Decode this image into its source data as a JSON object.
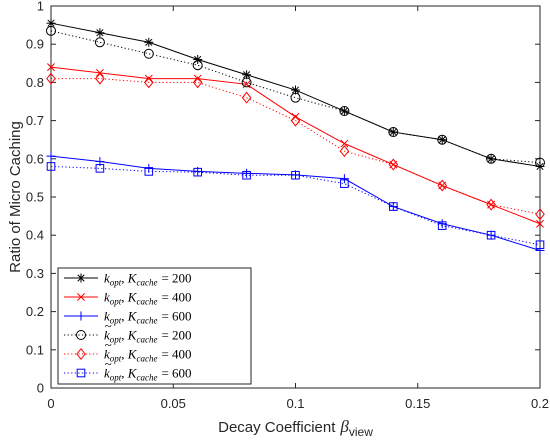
{
  "chart_data": {
    "type": "line",
    "xlabel": "Decay Coefficient",
    "xlabel_symbol": "β",
    "xlabel_subscript": "view",
    "ylabel": "Ratio of Micro Caching",
    "xlim": [
      0,
      0.2
    ],
    "ylim": [
      0,
      1
    ],
    "xticks": [
      0,
      0.05,
      0.1,
      0.15,
      0.2
    ],
    "xtick_labels": [
      "0",
      "0.05",
      "0.1",
      "0.15",
      "0.2"
    ],
    "yticks": [
      0,
      0.1,
      0.2,
      0.3,
      0.4,
      0.5,
      0.6,
      0.7,
      0.8,
      0.9,
      1
    ],
    "ytick_labels": [
      "0",
      "0.1",
      "0.2",
      "0.3",
      "0.4",
      "0.5",
      "0.6",
      "0.7",
      "0.8",
      "0.9",
      "1"
    ],
    "grid": false,
    "legend_position": "bottom-left",
    "x": [
      0,
      0.02,
      0.04,
      0.06,
      0.08,
      0.1,
      0.12,
      0.14,
      0.16,
      0.18,
      0.2
    ],
    "series": [
      {
        "name": "k_opt, K_cache = 200",
        "name_k": "k",
        "name_k_sub": "opt",
        "name_K": "K",
        "name_K_sub": "cache",
        "name_eq": "= 200",
        "tilde": false,
        "color": "#000000",
        "dash": "solid",
        "marker": "asterisk",
        "values": [
          0.955,
          0.93,
          0.905,
          0.86,
          0.82,
          0.78,
          0.725,
          0.67,
          0.65,
          0.6,
          0.58
        ]
      },
      {
        "name": "k_opt, K_cache = 400",
        "name_k": "k",
        "name_k_sub": "opt",
        "name_K": "K",
        "name_K_sub": "cache",
        "name_eq": "= 400",
        "tilde": false,
        "color": "#ff0000",
        "dash": "solid",
        "marker": "x",
        "values": [
          0.84,
          0.825,
          0.81,
          0.81,
          0.795,
          0.71,
          0.64,
          0.585,
          0.53,
          0.48,
          0.43
        ]
      },
      {
        "name": "k_opt, K_cache = 600",
        "name_k": "k",
        "name_k_sub": "opt",
        "name_K": "K",
        "name_K_sub": "cache",
        "name_eq": "= 600",
        "tilde": false,
        "color": "#0000ff",
        "dash": "solid",
        "marker": "plus",
        "values": [
          0.607,
          0.593,
          0.575,
          0.567,
          0.562,
          0.558,
          0.548,
          0.475,
          0.43,
          0.4,
          0.36
        ]
      },
      {
        "name": "k̃_opt, K_cache = 200",
        "name_k": "k",
        "name_k_sub": "opt",
        "name_K": "K",
        "name_K_sub": "cache",
        "name_eq": "= 200",
        "tilde": true,
        "color": "#000000",
        "dash": "dotted",
        "marker": "circle",
        "values": [
          0.935,
          0.905,
          0.875,
          0.845,
          0.8,
          0.76,
          0.725,
          0.67,
          0.65,
          0.6,
          0.59
        ]
      },
      {
        "name": "k̃_opt, K_cache = 400",
        "name_k": "k",
        "name_k_sub": "opt",
        "name_K": "K",
        "name_K_sub": "cache",
        "name_eq": "= 400",
        "tilde": true,
        "color": "#ff0000",
        "dash": "dotted",
        "marker": "diamond",
        "values": [
          0.81,
          0.81,
          0.8,
          0.8,
          0.76,
          0.7,
          0.62,
          0.585,
          0.53,
          0.48,
          0.455
        ]
      },
      {
        "name": "k̃_opt, K_cache = 600",
        "name_k": "k",
        "name_k_sub": "opt",
        "name_K": "K",
        "name_K_sub": "cache",
        "name_eq": "= 600",
        "tilde": true,
        "color": "#0000ff",
        "dash": "dotted",
        "marker": "square",
        "values": [
          0.58,
          0.575,
          0.567,
          0.565,
          0.557,
          0.557,
          0.535,
          0.475,
          0.425,
          0.4,
          0.375
        ]
      }
    ]
  }
}
